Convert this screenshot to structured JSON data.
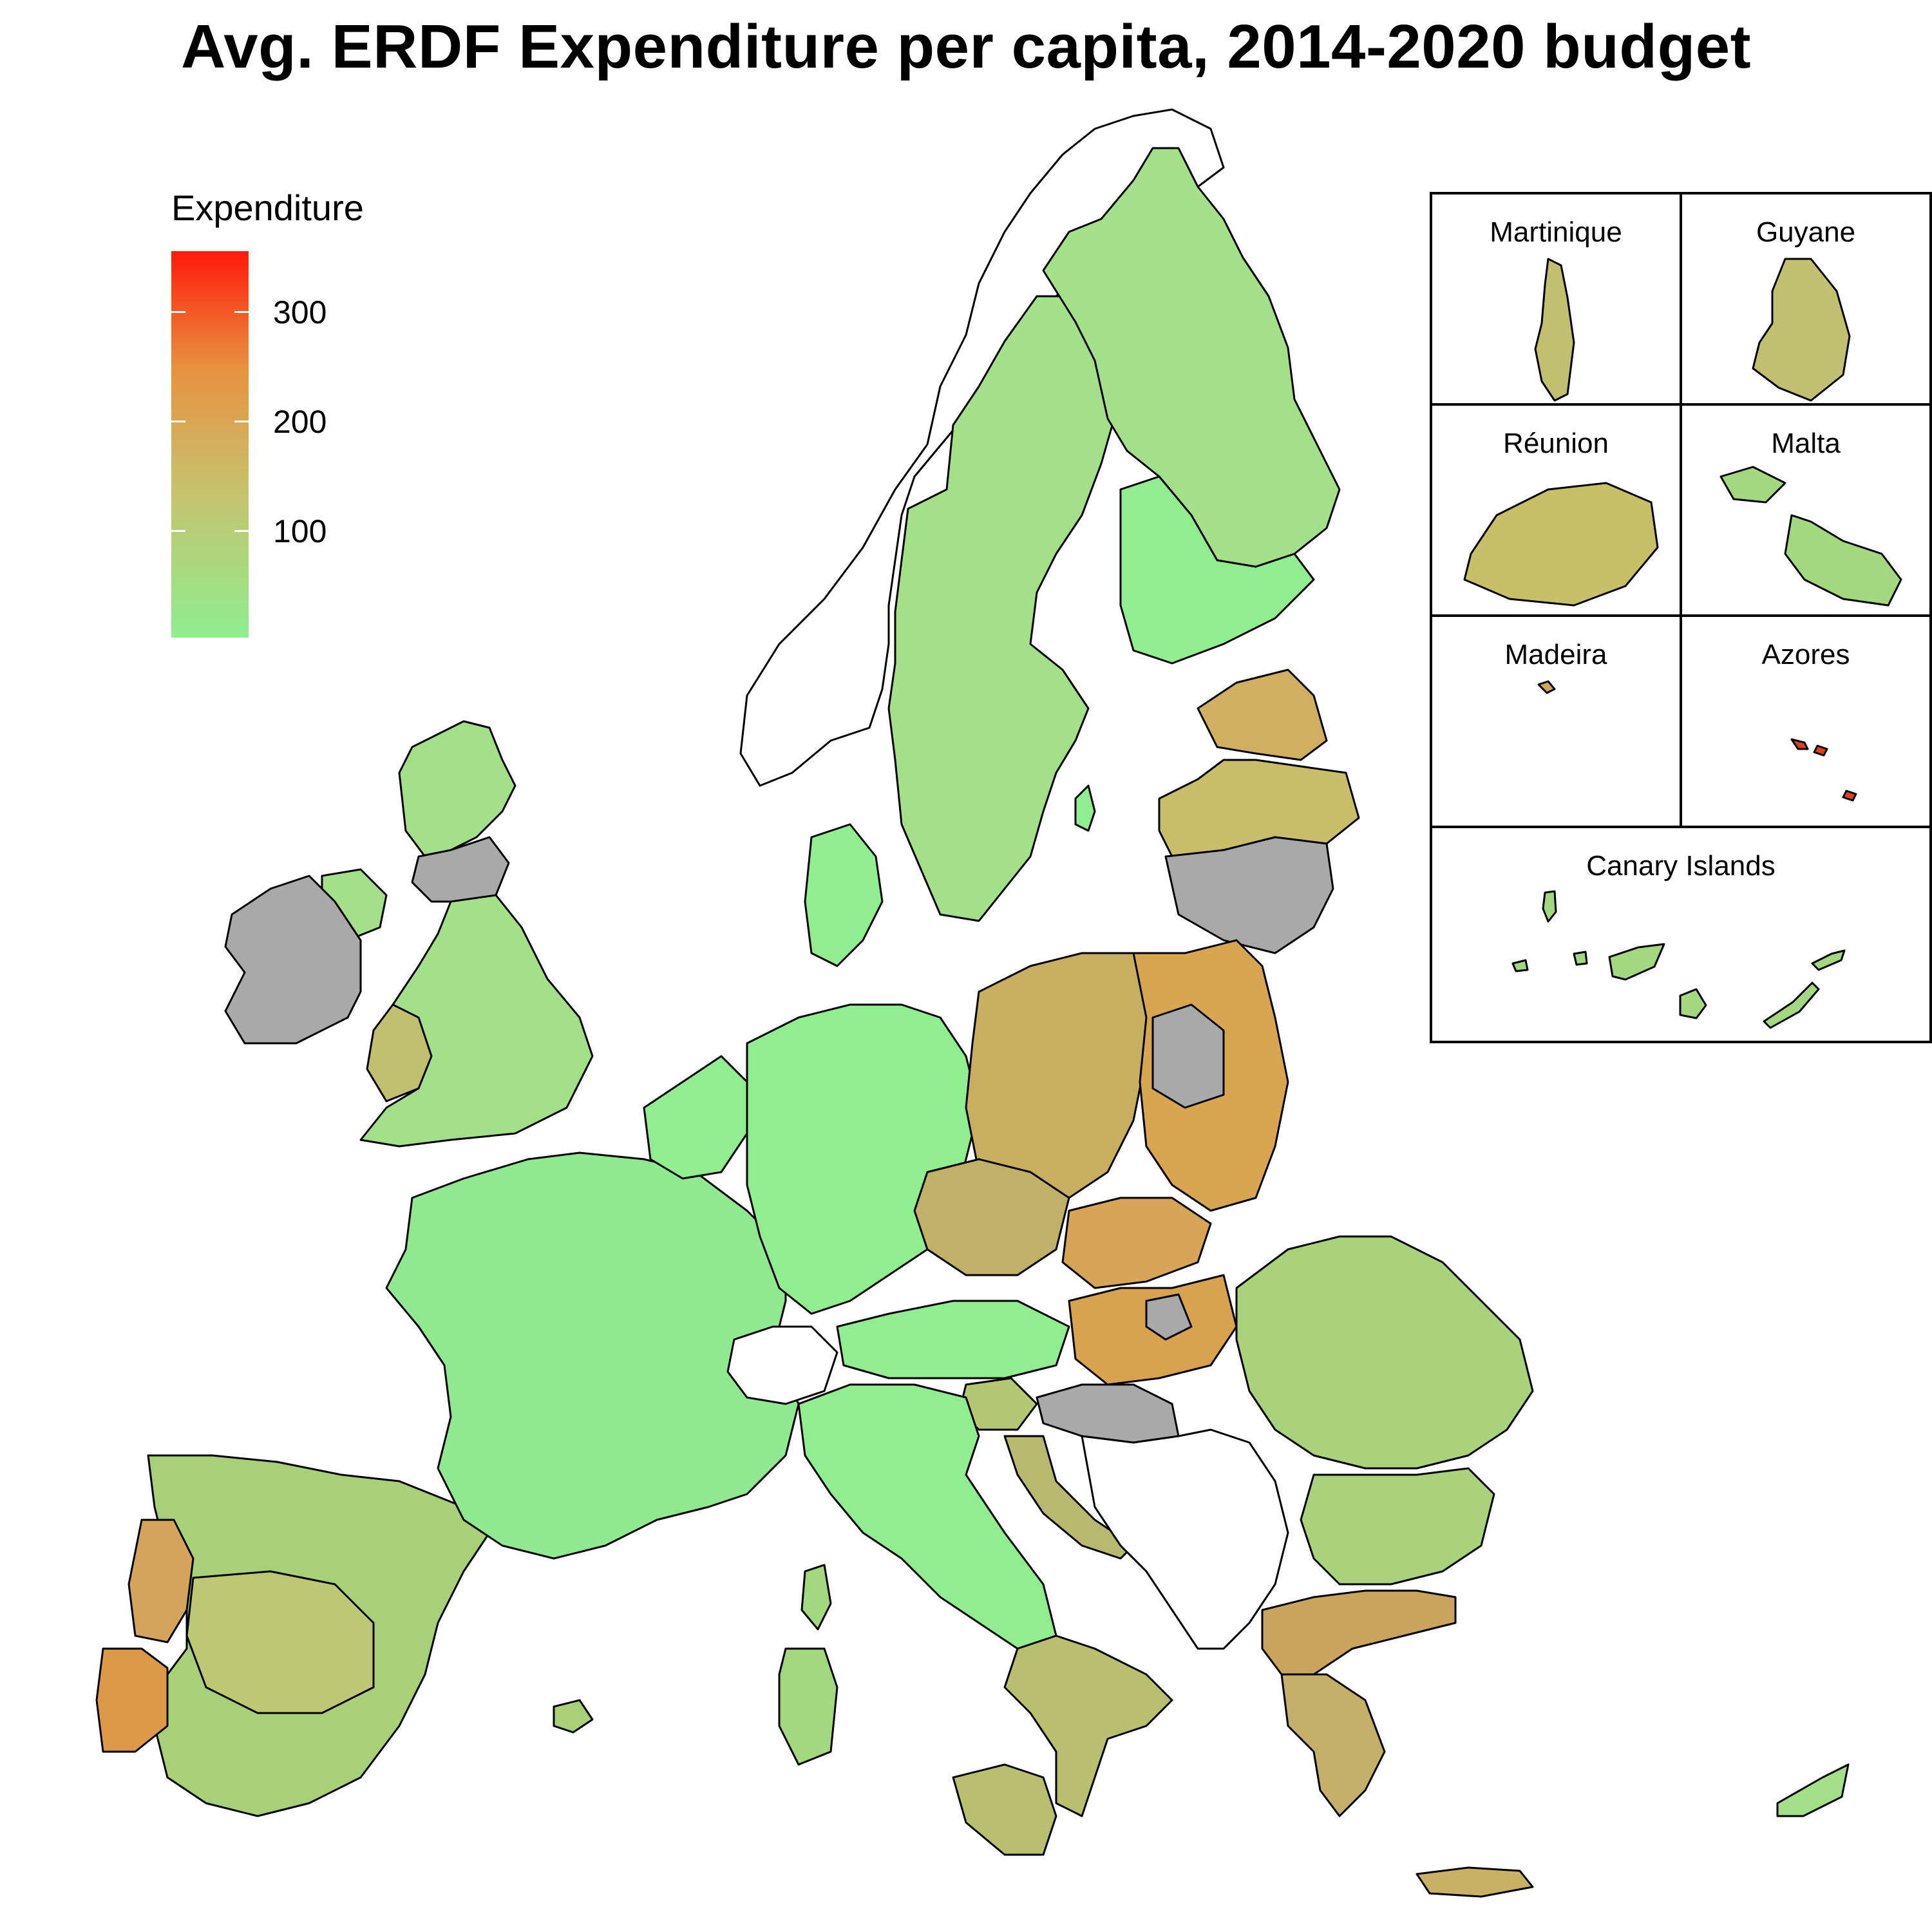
{
  "title": "Avg. ERDF Expenditure per capita, 2014-2020 budget",
  "legend": {
    "title": "Expenditure",
    "ticks": [
      "300",
      "200",
      "100"
    ],
    "color_low": "#90EE90",
    "color_mid": "#c9bf6c",
    "color_high": "#ff1a0a",
    "no_data_color": "#a9a9a9",
    "outside_color": "#ffffff"
  },
  "insets": {
    "martinique": "Martinique",
    "guyane": "Guyane",
    "reunion": "Réunion",
    "malta": "Malta",
    "madeira": "Madeira",
    "azores": "Azores",
    "canary": "Canary Islands"
  }
}
